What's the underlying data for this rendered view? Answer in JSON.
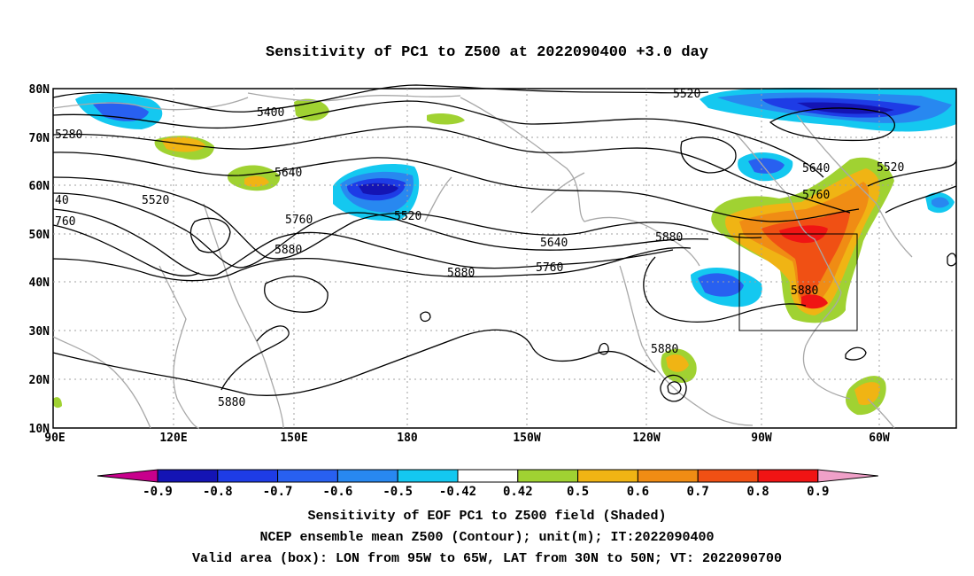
{
  "title": "Sensitivity of PC1 to Z500 at 2022090400 +3.0 day",
  "lat_labels": [
    "10N",
    "20N",
    "30N",
    "40N",
    "50N",
    "60N",
    "70N",
    "80N"
  ],
  "lon_labels": [
    "90E",
    "120E",
    "150E",
    "180",
    "150W",
    "120W",
    "90W",
    "60W"
  ],
  "contour_labels": [
    "5520",
    "5400",
    "5280",
    "5640",
    "5520",
    "40",
    "5520",
    "760",
    "5760",
    "5880",
    "5640",
    "5760",
    "5880",
    "5880",
    "5880",
    "5640",
    "5760",
    "5520",
    "5880",
    "5880"
  ],
  "colorbar": {
    "ticks": [
      "-0.9",
      "-0.8",
      "-0.7",
      "-0.6",
      "-0.5",
      "-0.42",
      "0.42",
      "0.5",
      "0.6",
      "0.7",
      "0.8",
      "0.9"
    ],
    "colors": [
      "#c8008c",
      "#1414b4",
      "#1e3ce6",
      "#2860f0",
      "#2888f0",
      "#14c8f0",
      "#ffffff",
      "#a0d232",
      "#f0b414",
      "#f08c14",
      "#f05014",
      "#f01414",
      "#f0a0c8"
    ]
  },
  "captions": {
    "line1": "Sensitivity of EOF PC1 to Z500 field (Shaded)",
    "line2": "NCEP ensemble mean Z500 (Contour); unit(m); IT:2022090400",
    "line3": "Valid area (box): LON from 95W to 65W, LAT from 30N to 50N; VT: 2022090700"
  }
}
